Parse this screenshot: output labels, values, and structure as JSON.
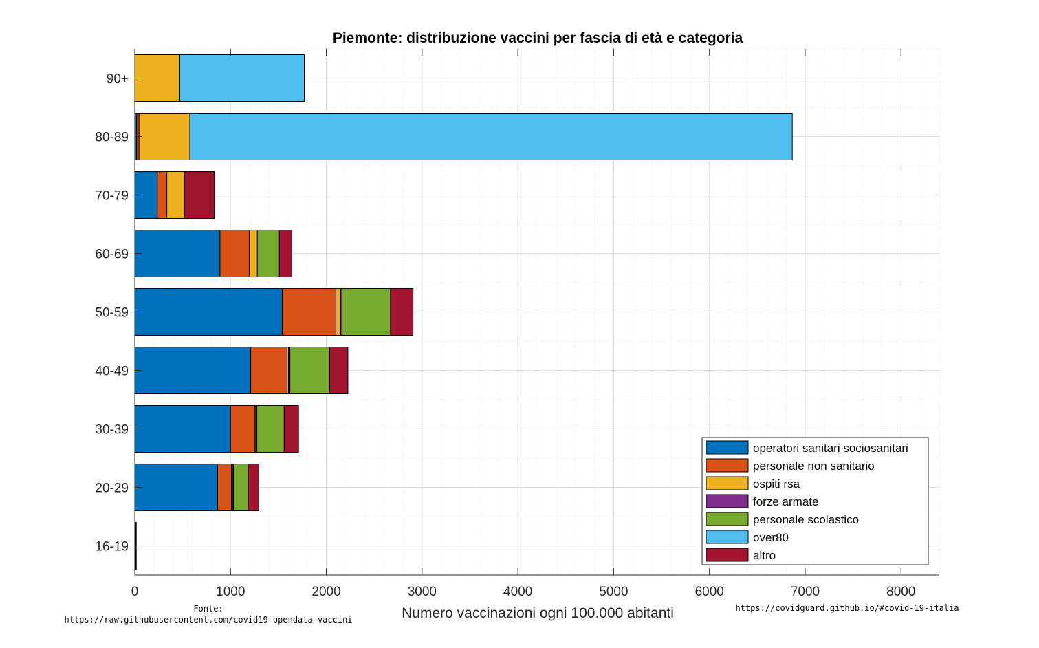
{
  "footer": {
    "source_label": "Fonte:",
    "source_url": "https://raw.githubusercontent.com/covid19-opendata-vaccini",
    "site": "https://covidguard.github.io/#covid-19-italia"
  },
  "chart_data": {
    "type": "bar",
    "orientation": "horizontal",
    "stacked": true,
    "title": "Piemonte: distribuzione vaccini per fascia di età e categoria",
    "xlabel": "Numero vaccinazioni ogni 100.000 abitanti",
    "ylabel": "",
    "xlim": [
      0,
      8400
    ],
    "xticks": [
      0,
      1000,
      2000,
      3000,
      4000,
      5000,
      6000,
      7000,
      8000
    ],
    "grid": true,
    "legend_position": "bottom-right",
    "categories": [
      "90+",
      "80-89",
      "70-79",
      "60-69",
      "50-59",
      "40-49",
      "30-39",
      "20-29",
      "16-19"
    ],
    "series": [
      {
        "name": "operatori sanitari sociosanitari",
        "color": "#0072BD",
        "values": [
          0,
          20,
          235,
          890,
          1540,
          1210,
          1000,
          865,
          5
        ]
      },
      {
        "name": "personale non sanitario",
        "color": "#D95319",
        "values": [
          0,
          25,
          100,
          305,
          560,
          380,
          255,
          145,
          3
        ]
      },
      {
        "name": "ospiti rsa",
        "color": "#EDB120",
        "values": [
          470,
          530,
          185,
          85,
          50,
          15,
          10,
          10,
          0
        ]
      },
      {
        "name": "forze armate",
        "color": "#7E2F8E",
        "values": [
          0,
          0,
          0,
          0,
          15,
          15,
          10,
          10,
          0
        ]
      },
      {
        "name": "personale scolastico",
        "color": "#77AC30",
        "values": [
          0,
          0,
          0,
          230,
          505,
          415,
          285,
          155,
          3
        ]
      },
      {
        "name": "over80",
        "color": "#4DBEEE",
        "values": [
          1300,
          6290,
          0,
          0,
          0,
          0,
          0,
          0,
          0
        ]
      },
      {
        "name": "altro",
        "color": "#A2142F",
        "values": [
          0,
          0,
          310,
          130,
          235,
          190,
          150,
          110,
          5
        ]
      }
    ]
  }
}
